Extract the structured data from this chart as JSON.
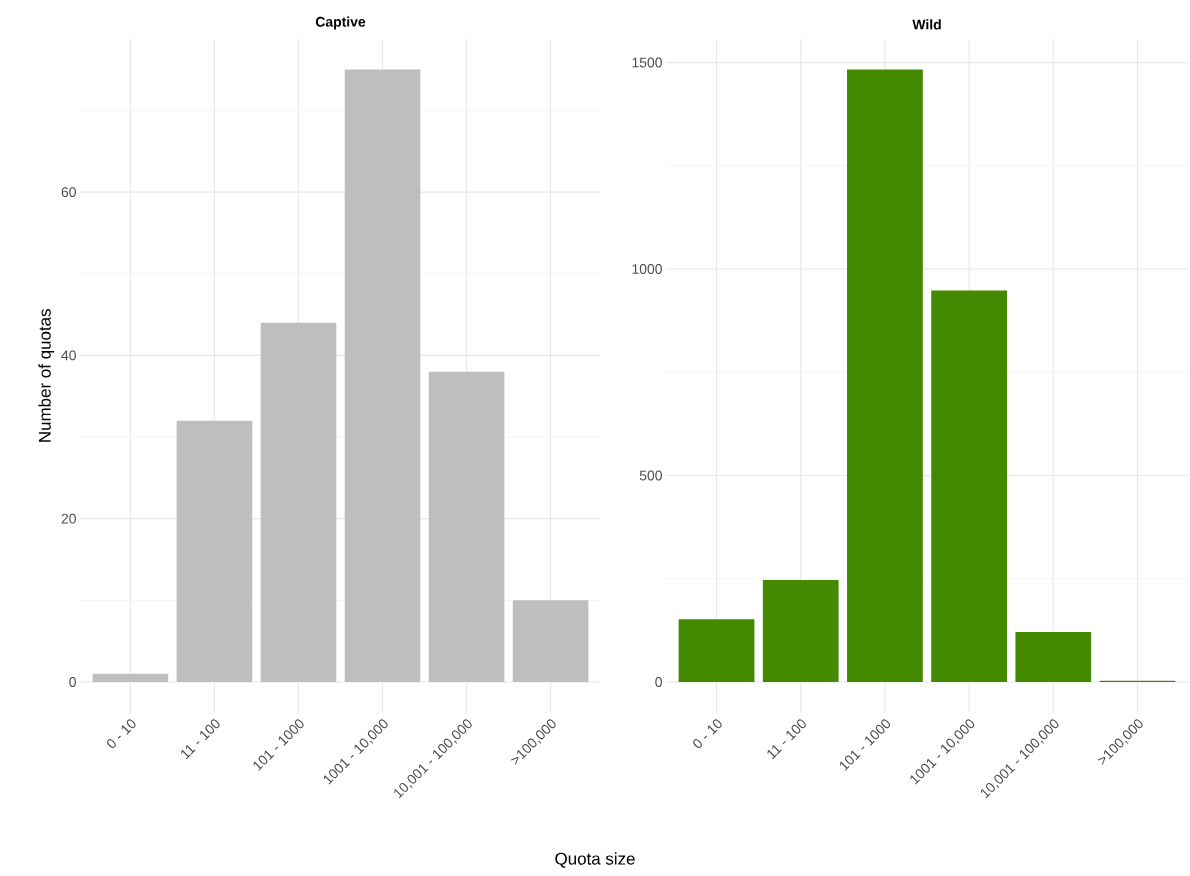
{
  "chart_data": [
    {
      "type": "bar",
      "title": "Captive",
      "xlabel": "Quota size",
      "ylabel": "Number of quotas",
      "categories": [
        "0 - 10",
        "11 - 100",
        "101 - 1000",
        "1001 - 10,000",
        "10,001 - 100,000",
        ">100,000"
      ],
      "values": [
        1,
        32,
        44,
        75,
        38,
        10
      ],
      "color": "#bebebe",
      "ylim": [
        -3.75,
        78.75
      ],
      "yticks": [
        0,
        20,
        40,
        60
      ],
      "grid": true
    },
    {
      "type": "bar",
      "title": "Wild",
      "categories": [
        "0 - 10",
        "11 - 100",
        "101 - 1000",
        "1001 - 10,000",
        "10,001 - 100,000",
        ">100,000"
      ],
      "values": [
        152,
        247,
        1483,
        948,
        121,
        3
      ],
      "color": "#448a00",
      "ylim": [
        -74.15,
        1557
      ],
      "yticks": [
        0,
        500,
        1000,
        1500
      ],
      "grid": true
    }
  ]
}
